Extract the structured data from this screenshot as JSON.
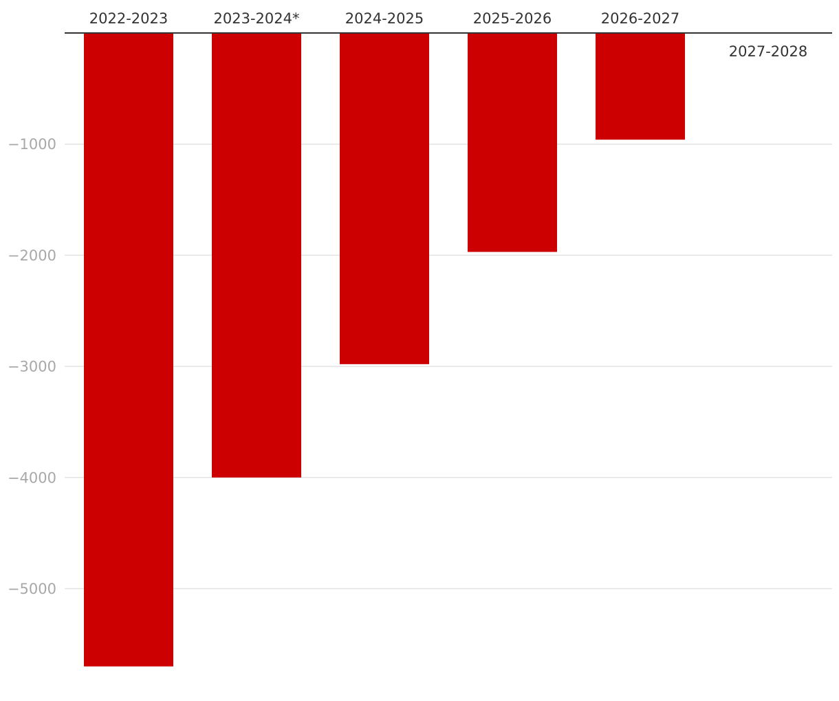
{
  "chart_data": {
    "type": "bar",
    "title": "",
    "xlabel": "",
    "ylabel": "",
    "categories": [
      "2022-2023",
      "2023-2024*",
      "2024-2025",
      "2025-2026",
      "2026-2027",
      "2027-2028"
    ],
    "values": [
      -5700,
      -4000,
      -2980,
      -1970,
      -960,
      0
    ],
    "ylim": [
      -5700,
      0
    ],
    "yticks": [
      -1000,
      -2000,
      -3000,
      -4000,
      -5000
    ],
    "ytick_labels": [
      "−1000",
      "−2000",
      "−3000",
      "−4000",
      "−5000"
    ],
    "grid": true,
    "legend": "none",
    "category_axis_position": "top",
    "colors": {
      "bar": "#cc0000",
      "grid": "#e3e3e3",
      "axis": "#333333",
      "tick_label": "#a8a8a8",
      "category_label": "#333333"
    }
  }
}
